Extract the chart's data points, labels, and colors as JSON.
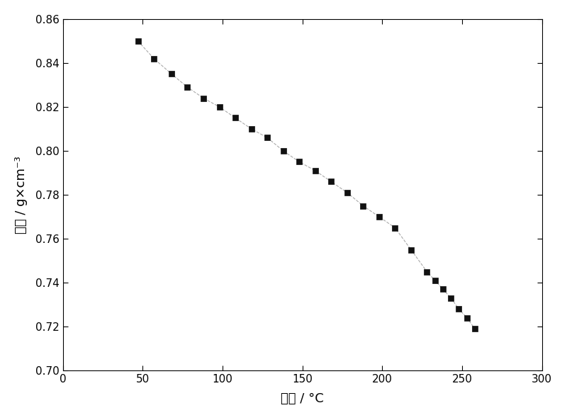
{
  "x": [
    47,
    57,
    68,
    78,
    88,
    98,
    108,
    118,
    128,
    138,
    148,
    158,
    168,
    178,
    188,
    198,
    208,
    218,
    228,
    233,
    238,
    243,
    248,
    253,
    258
  ],
  "y": [
    0.85,
    0.842,
    0.835,
    0.829,
    0.824,
    0.82,
    0.815,
    0.81,
    0.806,
    0.8,
    0.795,
    0.791,
    0.786,
    0.781,
    0.775,
    0.77,
    0.765,
    0.755,
    0.745,
    0.741,
    0.737,
    0.733,
    0.728,
    0.724,
    0.719
  ],
  "xlabel": "温度 / °C",
  "ylabel": "密度 / g×cm⁻³",
  "xlim": [
    0,
    300
  ],
  "ylim": [
    0.7,
    0.86
  ],
  "xticks": [
    0,
    50,
    100,
    150,
    200,
    250,
    300
  ],
  "yticks": [
    0.7,
    0.72,
    0.74,
    0.76,
    0.78,
    0.8,
    0.82,
    0.84,
    0.86
  ],
  "line_color": "#aaaaaa",
  "marker_color": "#111111",
  "bg_color": "#ffffff",
  "line_style": "--",
  "marker": "s",
  "marker_size": 6,
  "line_width": 0.8
}
